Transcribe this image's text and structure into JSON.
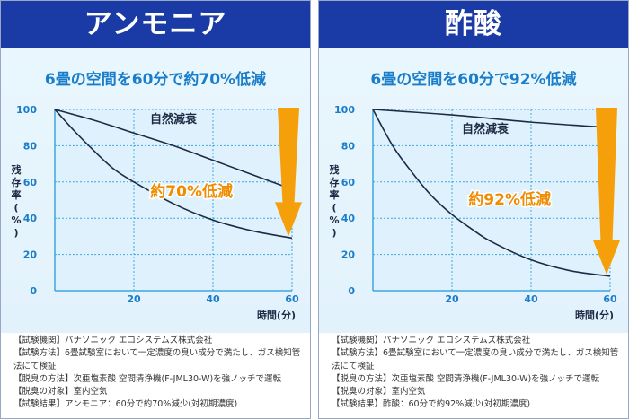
{
  "panels": [
    {
      "header": "アンモニア",
      "subtitle": "6畳の空間を60分で約70%低減",
      "notes": [
        "【試験機関】パナソニック エコシステムズ株式会社",
        "【試験方法】6畳試験室において一定濃度の臭い成分で満たし、ガス検知管法にて検証",
        "【脱臭の方法】次亜塩素酸 空間清浄機(F-JML30-W)を強ノッチで運転",
        "【脱臭の対象】室内空気",
        "【試験結果】アンモニア：60分で約70%減少(対初期濃度)"
      ]
    },
    {
      "header": "酢酸",
      "subtitle": "6畳の空間を60分で92%低減",
      "notes": [
        "【試験機関】パナソニック エコシステムズ株式会社",
        "【試験方法】6畳試験室において一定濃度の臭い成分で満たし、ガス検知管法にて検証",
        "【脱臭の方法】次亜塩素酸 空間清浄機(F-JML30-W)を強ノッチで運転",
        "【脱臭の対象】室内空気",
        "【試験結果】酢酸：60分で約92%減少(対初期濃度)"
      ]
    }
  ],
  "chart_data": [
    {
      "type": "line",
      "title": "",
      "xlabel": "時間(分)",
      "ylabel": "残存率(%)",
      "xlim": [
        0,
        60
      ],
      "ylim": [
        0,
        100
      ],
      "xticks": [
        20,
        40,
        60
      ],
      "yticks": [
        0,
        20,
        40,
        60,
        80,
        100
      ],
      "grid": true,
      "series": [
        {
          "name": "自然減衰",
          "x": [
            0,
            10,
            20,
            30,
            40,
            50,
            60
          ],
          "y": [
            100,
            94,
            87,
            80,
            72,
            64,
            56
          ]
        },
        {
          "name": "",
          "x": [
            0,
            5,
            10,
            15,
            20,
            30,
            40,
            50,
            60
          ],
          "y": [
            100,
            88,
            77,
            67,
            60,
            48,
            39,
            33,
            29
          ]
        }
      ],
      "annotations": [
        {
          "text": "約70%低減"
        }
      ],
      "colors": {
        "line": "#1e2a44",
        "arrow": "#f5a00a",
        "annotation": "#f08c00",
        "grid": "#3fa6e0"
      }
    },
    {
      "type": "line",
      "title": "",
      "xlabel": "時間(分)",
      "ylabel": "残存率(%)",
      "xlim": [
        0,
        60
      ],
      "ylim": [
        0,
        100
      ],
      "xticks": [
        20,
        40,
        60
      ],
      "yticks": [
        0,
        20,
        40,
        60,
        80,
        100
      ],
      "grid": true,
      "series": [
        {
          "name": "自然減衰",
          "x": [
            0,
            20,
            40,
            60
          ],
          "y": [
            100,
            97,
            93,
            90
          ]
        },
        {
          "name": "",
          "x": [
            0,
            5,
            10,
            15,
            20,
            25,
            30,
            40,
            50,
            60
          ],
          "y": [
            100,
            80,
            65,
            52,
            42,
            34,
            27,
            17,
            11,
            8
          ]
        }
      ],
      "annotations": [
        {
          "text": "約92%低減"
        }
      ],
      "colors": {
        "line": "#1e2a44",
        "arrow": "#f5a00a",
        "annotation": "#f08c00",
        "grid": "#3fa6e0"
      }
    }
  ]
}
